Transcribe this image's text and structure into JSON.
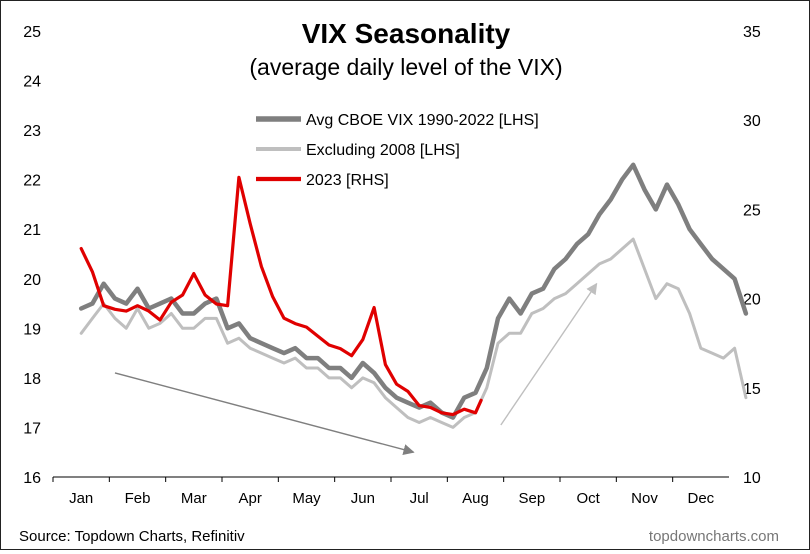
{
  "chart_data": {
    "type": "line",
    "title": "VIX Seasonality",
    "subtitle": "(average daily level of the VIX)",
    "source": "Source: Topdown Charts, Refinitiv",
    "watermark": "topdowncharts.com",
    "x_categories": [
      "Jan",
      "Feb",
      "Mar",
      "Apr",
      "May",
      "Jun",
      "Jul",
      "Aug",
      "Sep",
      "Oct",
      "Nov",
      "Dec"
    ],
    "ylim_left": [
      16,
      25
    ],
    "ylim_right": [
      10,
      35
    ],
    "left_ticks": [
      16,
      17,
      18,
      19,
      20,
      21,
      22,
      23,
      24,
      25
    ],
    "right_ticks": [
      10,
      15,
      20,
      25,
      30,
      35
    ],
    "legend_position": "top-center",
    "grid": false,
    "series": [
      {
        "name": "Avg CBOE VIX 1990-2022 [LHS]",
        "axis": "left",
        "color": "#7f7f7f",
        "x": [
          0,
          0.2,
          0.4,
          0.6,
          0.8,
          1,
          1.2,
          1.4,
          1.6,
          1.8,
          2,
          2.2,
          2.4,
          2.6,
          2.8,
          3,
          3.2,
          3.4,
          3.6,
          3.8,
          4,
          4.2,
          4.4,
          4.6,
          4.8,
          5,
          5.2,
          5.4,
          5.6,
          5.8,
          6,
          6.2,
          6.4,
          6.6,
          6.8,
          7,
          7.2,
          7.4,
          7.6,
          7.8,
          8,
          8.2,
          8.4,
          8.6,
          8.8,
          9,
          9.2,
          9.4,
          9.6,
          9.8,
          10,
          10.2,
          10.4,
          10.6,
          10.8,
          11,
          11.2,
          11.4,
          11.6,
          11.8
        ],
        "values": [
          19.4,
          19.5,
          19.9,
          19.6,
          19.5,
          19.8,
          19.4,
          19.5,
          19.6,
          19.3,
          19.3,
          19.5,
          19.6,
          19.0,
          19.1,
          18.8,
          18.7,
          18.6,
          18.5,
          18.6,
          18.4,
          18.4,
          18.2,
          18.2,
          18.0,
          18.3,
          18.1,
          17.8,
          17.6,
          17.5,
          17.4,
          17.5,
          17.3,
          17.2,
          17.6,
          17.7,
          18.2,
          19.2,
          19.6,
          19.3,
          19.7,
          19.8,
          20.2,
          20.4,
          20.7,
          20.9,
          21.3,
          21.6,
          22.0,
          22.3,
          21.8,
          21.4,
          21.9,
          21.5,
          21.0,
          20.7,
          20.4,
          20.2,
          20.0,
          19.3
        ]
      },
      {
        "name": "Excluding 2008 [LHS]",
        "axis": "left",
        "color": "#bfbfbf",
        "x": [
          0,
          0.2,
          0.4,
          0.6,
          0.8,
          1,
          1.2,
          1.4,
          1.6,
          1.8,
          2,
          2.2,
          2.4,
          2.6,
          2.8,
          3,
          3.2,
          3.4,
          3.6,
          3.8,
          4,
          4.2,
          4.4,
          4.6,
          4.8,
          5,
          5.2,
          5.4,
          5.6,
          5.8,
          6,
          6.2,
          6.4,
          6.6,
          6.8,
          7,
          7.2,
          7.4,
          7.6,
          7.8,
          8,
          8.2,
          8.4,
          8.6,
          8.8,
          9,
          9.2,
          9.4,
          9.6,
          9.8,
          10,
          10.2,
          10.4,
          10.6,
          10.8,
          11,
          11.2,
          11.4,
          11.6,
          11.8
        ],
        "values": [
          18.9,
          19.2,
          19.5,
          19.2,
          19.0,
          19.4,
          19.0,
          19.1,
          19.3,
          19.0,
          19.0,
          19.2,
          19.2,
          18.7,
          18.8,
          18.6,
          18.5,
          18.4,
          18.3,
          18.4,
          18.2,
          18.2,
          18.0,
          18.0,
          17.8,
          18.0,
          17.9,
          17.6,
          17.4,
          17.2,
          17.1,
          17.2,
          17.1,
          17.0,
          17.2,
          17.3,
          17.8,
          18.7,
          18.9,
          18.9,
          19.3,
          19.4,
          19.6,
          19.7,
          19.9,
          20.1,
          20.3,
          20.4,
          20.6,
          20.8,
          20.2,
          19.6,
          19.9,
          19.8,
          19.3,
          18.6,
          18.5,
          18.4,
          18.6,
          17.6
        ]
      },
      {
        "name": "2023 [RHS]",
        "axis": "right",
        "color": "#e00000",
        "x": [
          0,
          0.2,
          0.4,
          0.6,
          0.8,
          1,
          1.2,
          1.4,
          1.6,
          1.8,
          2,
          2.2,
          2.4,
          2.6,
          2.8,
          3,
          3.2,
          3.4,
          3.6,
          3.8,
          4,
          4.2,
          4.4,
          4.6,
          4.8,
          5,
          5.2,
          5.4,
          5.6,
          5.8,
          6,
          6.2,
          6.4,
          6.6,
          6.8,
          7,
          7.1
        ],
        "values": [
          22.8,
          21.5,
          19.6,
          19.4,
          19.3,
          19.6,
          19.3,
          18.8,
          19.8,
          20.2,
          21.4,
          20.2,
          19.7,
          19.6,
          26.8,
          24.2,
          21.8,
          20.1,
          18.9,
          18.6,
          18.4,
          17.9,
          17.4,
          17.2,
          16.8,
          17.7,
          19.5,
          16.3,
          15.2,
          14.8,
          14.0,
          13.9,
          13.6,
          13.5,
          13.8,
          13.6,
          14.3
        ]
      }
    ],
    "annotations": [
      {
        "type": "arrow",
        "color": "#7f7f7f",
        "from": [
          0.6,
          18.1
        ],
        "to": [
          5.9,
          16.5
        ]
      },
      {
        "type": "arrow",
        "color": "#bfbfbf",
        "from": [
          7.45,
          17.05
        ],
        "to": [
          9.15,
          19.9
        ]
      }
    ]
  }
}
